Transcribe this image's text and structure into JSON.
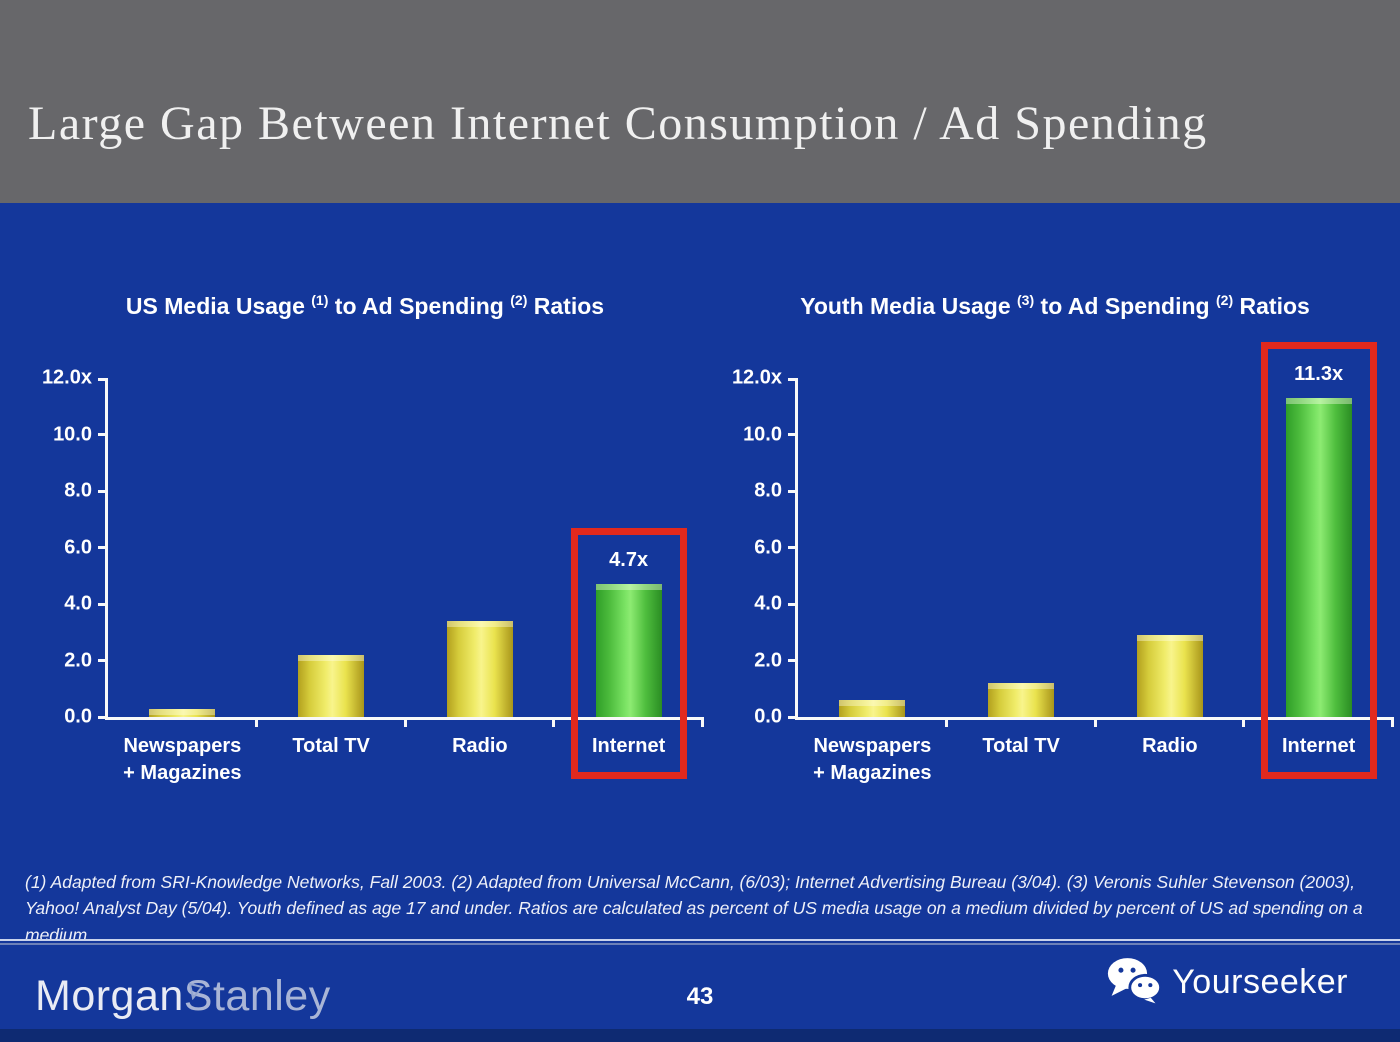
{
  "slide": {
    "title": "Large Gap Between Internet Consumption / Ad Spending",
    "footnote": "(1) Adapted from SRI-Knowledge Networks, Fall 2003.  (2) Adapted from Universal McCann, (6/03); Internet Advertising Bureau (3/04). (3) Veronis Suhler Stevenson (2003), Yahoo! Analyst Day (5/04).  Youth defined as age 17 and under.  Ratios are calculated as percent of US media usage on a medium divided by percent of US ad spending on a medium.",
    "page_number": "43"
  },
  "footer": {
    "brand_part1": "Morgan",
    "brand_part2": "Stanley",
    "watermark_label": "Yourseeker"
  },
  "colors": {
    "header_gray": "#67676a",
    "slide_blue": "#14379b",
    "bar_yellow": "#e8e34e",
    "bar_green": "#55c443",
    "highlight_red": "#e2291d",
    "text_white": "#ffffff"
  },
  "chart_data": [
    {
      "type": "bar",
      "title": {
        "pre": "US Media Usage",
        "sup1": "(1)",
        "mid": "to Ad Spending",
        "sup2": "(2)",
        "post": "Ratios"
      },
      "categories": [
        [
          "Newspapers",
          "+ Magazines"
        ],
        [
          "Total TV"
        ],
        [
          "Radio"
        ],
        [
          "Internet"
        ]
      ],
      "values": [
        0.3,
        2.2,
        3.4,
        4.7
      ],
      "bar_colors": [
        "yellow",
        "yellow",
        "yellow",
        "green"
      ],
      "data_labels": [
        null,
        null,
        null,
        "4.7x"
      ],
      "ylim": [
        0,
        12
      ],
      "y_ticks": [
        {
          "value": 12,
          "label": "12.0x"
        },
        {
          "value": 10,
          "label": "10.0"
        },
        {
          "value": 8,
          "label": "8.0"
        },
        {
          "value": 6,
          "label": "6.0"
        },
        {
          "value": 4,
          "label": "4.0"
        },
        {
          "value": 2,
          "label": "2.0"
        },
        {
          "value": 0,
          "label": "0.0"
        }
      ],
      "highlight_index": 3,
      "grid": false,
      "legend": "none"
    },
    {
      "type": "bar",
      "title": {
        "pre": "Youth Media Usage",
        "sup1": "(3)",
        "mid": "to Ad Spending",
        "sup2": "(2)",
        "post": "Ratios"
      },
      "categories": [
        [
          "Newspapers",
          "+ Magazines"
        ],
        [
          "Total TV"
        ],
        [
          "Radio"
        ],
        [
          "Internet"
        ]
      ],
      "values": [
        0.6,
        1.2,
        2.9,
        11.3
      ],
      "bar_colors": [
        "yellow",
        "yellow",
        "yellow",
        "green"
      ],
      "data_labels": [
        null,
        null,
        null,
        "11.3x"
      ],
      "ylim": [
        0,
        12
      ],
      "y_ticks": [
        {
          "value": 12,
          "label": "12.0x"
        },
        {
          "value": 10,
          "label": "10.0"
        },
        {
          "value": 8,
          "label": "8.0"
        },
        {
          "value": 6,
          "label": "6.0"
        },
        {
          "value": 4,
          "label": "4.0"
        },
        {
          "value": 2,
          "label": "2.0"
        },
        {
          "value": 0,
          "label": "0.0"
        }
      ],
      "highlight_index": 3,
      "grid": false,
      "legend": "none"
    }
  ]
}
